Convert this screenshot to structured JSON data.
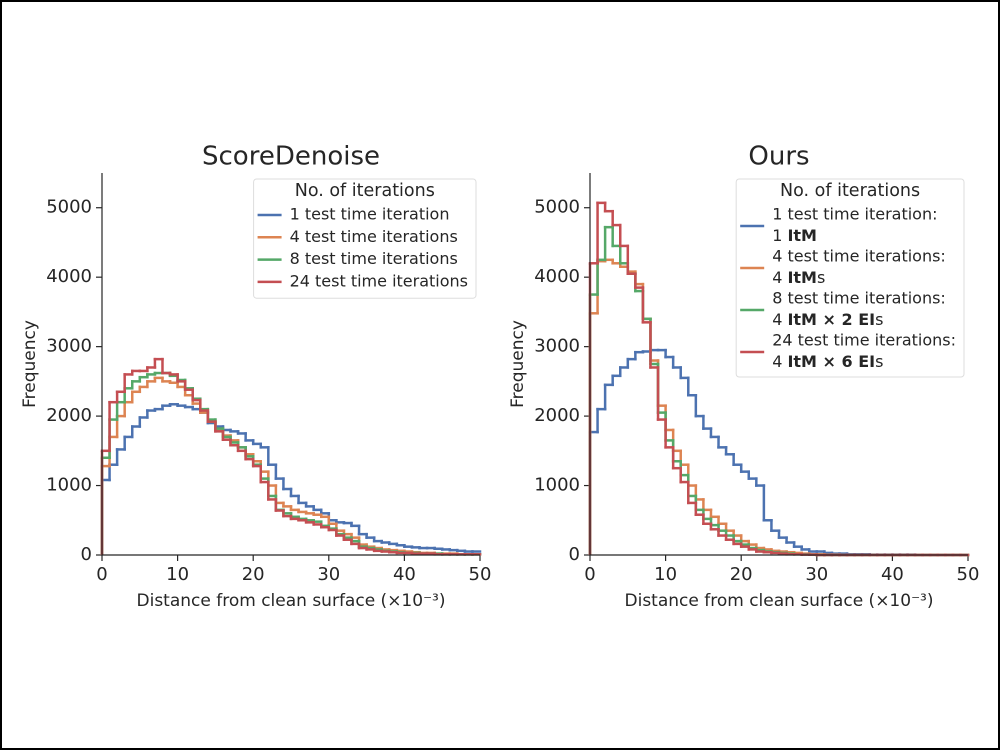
{
  "chart_data": [
    {
      "type": "histogram",
      "title": "ScoreDenoise",
      "xlabel": "Distance from clean surface (×10⁻³)",
      "ylabel": "Frequency",
      "xlim": [
        0,
        50
      ],
      "ylim": [
        0,
        5500
      ],
      "xticks": [
        0,
        10,
        20,
        30,
        40,
        50
      ],
      "yticks": [
        0,
        1000,
        2000,
        3000,
        4000,
        5000
      ],
      "legend_title": "No. of iterations",
      "legend": "upper right",
      "bins": [
        0,
        1,
        2,
        3,
        4,
        5,
        6,
        7,
        8,
        9,
        10,
        11,
        12,
        13,
        14,
        15,
        16,
        17,
        18,
        19,
        20,
        21,
        22,
        23,
        24,
        25,
        26,
        27,
        28,
        29,
        30,
        31,
        32,
        33,
        34,
        35,
        36,
        37,
        38,
        39,
        40,
        41,
        42,
        43,
        44,
        45,
        46,
        47,
        48,
        49,
        50
      ],
      "series": [
        {
          "name": "1 test time iteration",
          "color": "#4c72b0",
          "values": [
            1080,
            1300,
            1520,
            1700,
            1850,
            1980,
            2080,
            2100,
            2150,
            2170,
            2150,
            2130,
            2100,
            2050,
            1900,
            1850,
            1800,
            1780,
            1750,
            1650,
            1600,
            1550,
            1300,
            1100,
            950,
            850,
            750,
            700,
            650,
            600,
            500,
            470,
            460,
            420,
            300,
            250,
            200,
            180,
            160,
            140,
            120,
            110,
            100,
            100,
            90,
            80,
            70,
            60,
            50,
            50
          ]
        },
        {
          "name": "4 test time iterations",
          "color": "#dd8452",
          "values": [
            1280,
            1700,
            2000,
            2200,
            2350,
            2420,
            2500,
            2550,
            2500,
            2480,
            2420,
            2300,
            2180,
            2050,
            1920,
            1800,
            1720,
            1650,
            1550,
            1450,
            1350,
            1200,
            1000,
            750,
            700,
            650,
            620,
            600,
            580,
            550,
            450,
            350,
            300,
            250,
            150,
            120,
            100,
            80,
            70,
            60,
            50,
            40,
            30,
            30,
            20,
            20,
            20,
            10,
            10,
            10
          ]
        },
        {
          "name": "8 test time iterations",
          "color": "#55a868",
          "values": [
            1400,
            1950,
            2200,
            2400,
            2500,
            2560,
            2600,
            2620,
            2620,
            2580,
            2520,
            2400,
            2250,
            2100,
            1950,
            1820,
            1700,
            1620,
            1550,
            1420,
            1300,
            1100,
            850,
            650,
            600,
            550,
            520,
            500,
            480,
            420,
            380,
            300,
            250,
            200,
            120,
            100,
            80,
            60,
            50,
            40,
            30,
            30,
            20,
            20,
            20,
            10,
            10,
            10,
            10,
            10
          ]
        },
        {
          "name": "24 test time iterations",
          "color": "#c44e52",
          "values": [
            1500,
            2200,
            2350,
            2600,
            2650,
            2650,
            2700,
            2820,
            2620,
            2600,
            2500,
            2380,
            2230,
            2080,
            1920,
            1780,
            1660,
            1580,
            1500,
            1380,
            1280,
            1050,
            800,
            640,
            560,
            520,
            500,
            470,
            440,
            400,
            360,
            280,
            220,
            160,
            100,
            80,
            60,
            50,
            40,
            30,
            30,
            20,
            20,
            20,
            10,
            10,
            10,
            10,
            10,
            10
          ]
        }
      ]
    },
    {
      "type": "histogram",
      "title": "Ours",
      "xlabel": "Distance from clean surface (×10⁻³)",
      "ylabel": "Frequency",
      "xlim": [
        0,
        50
      ],
      "ylim": [
        0,
        5500
      ],
      "xticks": [
        0,
        10,
        20,
        30,
        40,
        50
      ],
      "yticks": [
        0,
        1000,
        2000,
        3000,
        4000,
        5000
      ],
      "legend_title": "No. of iterations",
      "legend": "upper right",
      "bins": [
        0,
        1,
        2,
        3,
        4,
        5,
        6,
        7,
        8,
        9,
        10,
        11,
        12,
        13,
        14,
        15,
        16,
        17,
        18,
        19,
        20,
        21,
        22,
        23,
        24,
        25,
        26,
        27,
        28,
        29,
        30,
        31,
        32,
        33,
        34,
        35,
        36,
        37,
        38,
        39,
        40,
        41,
        42,
        43,
        44,
        45,
        46,
        47,
        48,
        49,
        50
      ],
      "series": [
        {
          "name": "1 test time iteration:",
          "name_detail": [
            {
              "text": "1 ",
              "bold": false
            },
            {
              "text": "ItM",
              "bold": true
            }
          ],
          "color": "#4c72b0",
          "values": [
            1770,
            2100,
            2450,
            2580,
            2700,
            2820,
            2920,
            2930,
            2950,
            2950,
            2850,
            2700,
            2550,
            2300,
            2000,
            1820,
            1700,
            1550,
            1450,
            1300,
            1200,
            1100,
            1000,
            500,
            350,
            250,
            180,
            120,
            80,
            50,
            50,
            30,
            20,
            20,
            10,
            10,
            10,
            5,
            5,
            5,
            5,
            5,
            5,
            0,
            0,
            0,
            0,
            0,
            0,
            0
          ]
        },
        {
          "name": "4 test time iterations:",
          "name_detail": [
            {
              "text": "4 ",
              "bold": false
            },
            {
              "text": "ItM",
              "bold": true
            },
            {
              "text": "s",
              "bold": false
            }
          ],
          "color": "#dd8452",
          "values": [
            3480,
            4230,
            4250,
            4200,
            4150,
            4080,
            3900,
            3400,
            2800,
            2150,
            1800,
            1500,
            1300,
            1000,
            800,
            650,
            550,
            450,
            350,
            280,
            200,
            150,
            100,
            80,
            60,
            50,
            40,
            30,
            20,
            10,
            10,
            5,
            5,
            0,
            0,
            0,
            0,
            0,
            0,
            0,
            0,
            0,
            0,
            0,
            0,
            0,
            0,
            0,
            0,
            0
          ]
        },
        {
          "name": "8 test time iterations:",
          "name_detail": [
            {
              "text": "4 ",
              "bold": false
            },
            {
              "text": "ItM × 2 EI",
              "bold": true
            },
            {
              "text": "s",
              "bold": false
            }
          ],
          "color": "#55a868",
          "values": [
            3750,
            4250,
            4720,
            4450,
            4200,
            4050,
            3800,
            3400,
            2750,
            2050,
            1650,
            1350,
            1150,
            850,
            650,
            520,
            430,
            350,
            280,
            200,
            150,
            100,
            70,
            50,
            40,
            30,
            20,
            10,
            10,
            5,
            0,
            0,
            0,
            0,
            0,
            0,
            0,
            0,
            0,
            0,
            0,
            0,
            0,
            0,
            0,
            0,
            0,
            0,
            0,
            0
          ]
        },
        {
          "name": "24 test time iterations:",
          "name_detail": [
            {
              "text": "4 ",
              "bold": false
            },
            {
              "text": "ItM × 6 EI",
              "bold": true
            },
            {
              "text": "s",
              "bold": false
            }
          ],
          "color": "#c44e52",
          "values": [
            4200,
            5070,
            4950,
            4750,
            4450,
            4050,
            3850,
            3350,
            2700,
            1950,
            1550,
            1250,
            1050,
            750,
            580,
            450,
            370,
            280,
            220,
            160,
            120,
            80,
            50,
            40,
            30,
            20,
            10,
            10,
            5,
            5,
            0,
            0,
            0,
            0,
            0,
            0,
            0,
            0,
            0,
            0,
            0,
            0,
            0,
            0,
            0,
            0,
            0,
            0,
            0,
            0
          ]
        }
      ]
    }
  ]
}
